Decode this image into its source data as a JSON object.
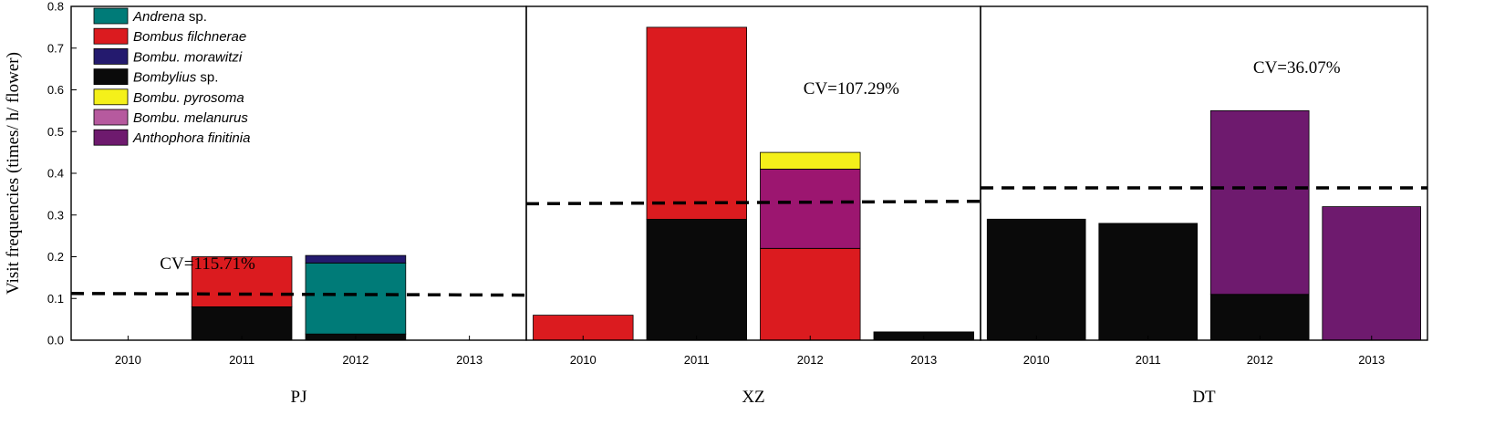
{
  "chart_data": {
    "type": "bar",
    "stacked": true,
    "ylabel": "Visit  frequencies (times/ h/ flower)",
    "ylim": [
      0,
      0.8
    ],
    "yticks": [
      "0.0",
      "0.1",
      "0.2",
      "0.3",
      "0.4",
      "0.5",
      "0.6",
      "0.7",
      "0.8"
    ],
    "categories": [
      "2010",
      "2011",
      "2012",
      "2013"
    ],
    "legend": {
      "placement": "top-left",
      "items": [
        {
          "key": "andrena",
          "italic": "Andrena",
          "suffix": " sp.",
          "color": "#007B78"
        },
        {
          "key": "filchnerae",
          "italic": "Bombus filchnerae",
          "suffix": "",
          "color": "#DB1B1F"
        },
        {
          "key": "morawitzi",
          "italic": "Bombu. morawitzi",
          "suffix": "",
          "color": "#241A6E"
        },
        {
          "key": "bombylius",
          "italic": "Bombylius",
          "suffix": " sp.",
          "color": "#0A0A0A"
        },
        {
          "key": "pyrosoma",
          "italic": "Bombu. pyrosoma",
          "suffix": "",
          "color": "#F4F01A"
        },
        {
          "key": "melanurus",
          "italic": "Bombu. melanurus",
          "suffix": "",
          "color": "#B65A9E"
        },
        {
          "key": "anthophora",
          "italic": "Anthophora finitinia",
          "suffix": "",
          "color": "#6E1A6E"
        }
      ]
    },
    "panels": [
      {
        "name": "PJ",
        "cv": "CV=115.71%",
        "mean_line": [
          0.112,
          0.108
        ],
        "bars": [
          {
            "category": "2010",
            "segments": []
          },
          {
            "category": "2011",
            "segments": [
              {
                "species": "bombylius",
                "value": 0.08,
                "color": "#0A0A0A"
              },
              {
                "species": "filchnerae",
                "value": 0.12,
                "color": "#DB1B1F"
              }
            ]
          },
          {
            "category": "2012",
            "segments": [
              {
                "species": "bombylius",
                "value": 0.015,
                "color": "#0A0A0A"
              },
              {
                "species": "andrena",
                "value": 0.17,
                "color": "#007B78"
              },
              {
                "species": "morawitzi",
                "value": 0.018,
                "color": "#241A6E"
              }
            ]
          },
          {
            "category": "2013",
            "segments": []
          }
        ]
      },
      {
        "name": "XZ",
        "cv": "CV=107.29%",
        "mean_line": [
          0.327,
          0.333
        ],
        "bars": [
          {
            "category": "2010",
            "segments": [
              {
                "species": "filchnerae",
                "value": 0.06,
                "color": "#DB1B1F"
              }
            ]
          },
          {
            "category": "2011",
            "segments": [
              {
                "species": "bombylius",
                "value": 0.29,
                "color": "#0A0A0A"
              },
              {
                "species": "filchnerae",
                "value": 0.46,
                "color": "#DB1B1F"
              }
            ]
          },
          {
            "category": "2012",
            "segments": [
              {
                "species": "filchnerae",
                "value": 0.22,
                "color": "#DB1B1F"
              },
              {
                "species": "melanurus",
                "value": 0.19,
                "color": "#9C1670"
              },
              {
                "species": "pyrosoma",
                "value": 0.04,
                "color": "#F4F01A"
              }
            ]
          },
          {
            "category": "2013",
            "segments": [
              {
                "species": "bombylius",
                "value": 0.02,
                "color": "#0A0A0A"
              }
            ]
          }
        ]
      },
      {
        "name": "DT",
        "cv": "CV=36.07%",
        "mean_line": [
          0.365,
          0.365
        ],
        "bars": [
          {
            "category": "2010",
            "segments": [
              {
                "species": "bombylius",
                "value": 0.29,
                "color": "#0A0A0A"
              }
            ]
          },
          {
            "category": "2011",
            "segments": [
              {
                "species": "bombylius",
                "value": 0.28,
                "color": "#0A0A0A"
              }
            ]
          },
          {
            "category": "2012",
            "segments": [
              {
                "species": "bombylius",
                "value": 0.11,
                "color": "#0A0A0A"
              },
              {
                "species": "anthophora",
                "value": 0.44,
                "color": "#6E1A6E"
              }
            ]
          },
          {
            "category": "2013",
            "segments": [
              {
                "species": "anthophora",
                "value": 0.32,
                "color": "#6E1A6E"
              }
            ]
          }
        ]
      }
    ]
  }
}
